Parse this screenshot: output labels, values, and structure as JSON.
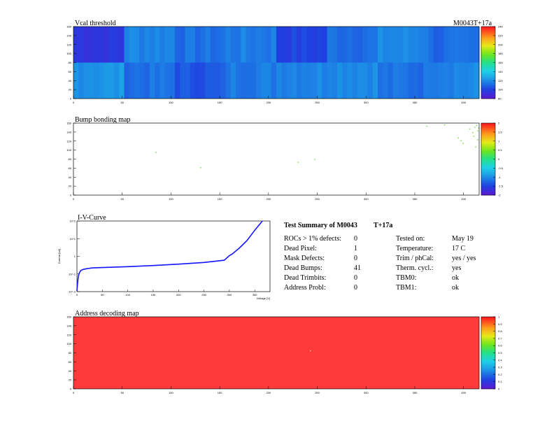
{
  "panels": {
    "vcal": {
      "title": "Vcal threshold",
      "module_label": "M0043T+17a"
    },
    "bump": {
      "title": "Bump bonding map"
    },
    "iv": {
      "title": "I-V-Curve"
    },
    "address": {
      "title": "Address decoding map"
    }
  },
  "summary": {
    "title_left": "Test Summary of M0043",
    "title_right": "T+17a",
    "left_rows": [
      {
        "label": "ROCs > 1% defects:",
        "value": "0"
      },
      {
        "label": "Dead Pixel:",
        "value": "1"
      },
      {
        "label": "Mask Defects:",
        "value": "0"
      },
      {
        "label": "Dead Bumps:",
        "value": "41"
      },
      {
        "label": "Dead Trimbits:",
        "value": "0"
      },
      {
        "label": "Address Probl:",
        "value": "0"
      }
    ],
    "right_rows": [
      {
        "label": "Tested on:",
        "value": "May 19"
      },
      {
        "label": "Temperature:",
        "value": "17 C"
      },
      {
        "label": "Trim / phCal:",
        "value": "yes / yes"
      },
      {
        "label": "Therm. cycl.:",
        "value": "yes"
      },
      {
        "label": "TBM0:",
        "value": "ok"
      },
      {
        "label": "TBM1:",
        "value": "ok"
      }
    ]
  },
  "chart_data": [
    {
      "type": "heatmap",
      "title": "Vcal threshold",
      "xlim": [
        0,
        416
      ],
      "ylim": [
        0,
        160
      ],
      "x_ticks": [
        "0",
        "50",
        "100",
        "150",
        "200",
        "250",
        "300",
        "350",
        "400"
      ],
      "y_ticks": [
        "0",
        "20",
        "40",
        "60",
        "80",
        "100",
        "120",
        "140",
        "160"
      ],
      "z_range": [
        80,
        240
      ],
      "z_ticks": [
        "80",
        "100",
        "120",
        "140",
        "160",
        "180",
        "200",
        "220",
        "240"
      ],
      "roc_grid": {
        "cols": 8,
        "rows": 2
      },
      "roc_means_top": [
        95,
        118,
        112,
        115,
        100,
        112,
        118,
        110
      ],
      "roc_means_bottom": [
        122,
        112,
        105,
        115,
        118,
        120,
        112,
        118
      ]
    },
    {
      "type": "heatmap",
      "title": "Bump bonding map",
      "xlim": [
        0,
        416
      ],
      "ylim": [
        0,
        160
      ],
      "x_ticks": [
        "0",
        "50",
        "100",
        "150",
        "200",
        "250",
        "300",
        "350",
        "400"
      ],
      "y_ticks": [
        "0",
        "20",
        "40",
        "60",
        "80",
        "100",
        "120",
        "140",
        "160"
      ],
      "z_range": [
        -2,
        2
      ],
      "z_ticks": [
        "-2",
        "-1.5",
        "-1",
        "-0.5",
        "0",
        "0.5",
        "1",
        "1.5",
        "2"
      ],
      "points": [
        [
          84,
          96
        ],
        [
          130,
          62
        ],
        [
          230,
          74
        ],
        [
          247,
          80
        ],
        [
          362,
          154
        ],
        [
          380,
          157
        ],
        [
          394,
          128
        ],
        [
          397,
          122
        ],
        [
          399,
          116
        ],
        [
          406,
          148
        ],
        [
          409,
          140
        ],
        [
          410,
          132
        ],
        [
          411,
          152
        ],
        [
          412,
          108
        ],
        [
          413,
          156
        ],
        [
          414,
          144
        ],
        [
          414,
          124
        ],
        [
          415,
          150
        ]
      ]
    },
    {
      "type": "line",
      "title": "I-V-Curve",
      "xlabel": "Voltage [V]",
      "ylabel": "Current [uA]",
      "xlim": [
        0,
        380
      ],
      "log_y": true,
      "ylim": [
        0.01,
        100
      ],
      "x_ticks": [
        "0",
        "50",
        "100",
        "150",
        "200",
        "250",
        "300",
        "350"
      ],
      "y_ticks": [
        "10^-2",
        "10^-1",
        "1",
        "10^1",
        "10^2"
      ],
      "series": [
        {
          "x": [
            0,
            1,
            2,
            3,
            5,
            8,
            12,
            20,
            30,
            50,
            100,
            150,
            200,
            250,
            290,
            300,
            305,
            320,
            335,
            350,
            365
          ],
          "y": [
            0.011,
            0.025,
            0.05,
            0.08,
            0.12,
            0.16,
            0.18,
            0.2,
            0.22,
            0.23,
            0.26,
            0.3,
            0.36,
            0.45,
            0.6,
            1.1,
            1.3,
            3.0,
            8.0,
            30,
            100
          ]
        }
      ]
    },
    {
      "type": "heatmap",
      "title": "Address decoding map",
      "xlim": [
        0,
        416
      ],
      "ylim": [
        0,
        160
      ],
      "x_ticks": [
        "0",
        "50",
        "100",
        "150",
        "200",
        "250",
        "300",
        "350",
        "400"
      ],
      "y_ticks": [
        "0",
        "20",
        "40",
        "60",
        "80",
        "100",
        "120",
        "140",
        "160"
      ],
      "z_range": [
        0,
        1
      ],
      "z_ticks": [
        "0",
        "0.1",
        "0.2",
        "0.3",
        "0.4",
        "0.5",
        "0.6",
        "0.7",
        "0.8",
        "0.9",
        "1"
      ],
      "uniform_value": 1
    }
  ]
}
